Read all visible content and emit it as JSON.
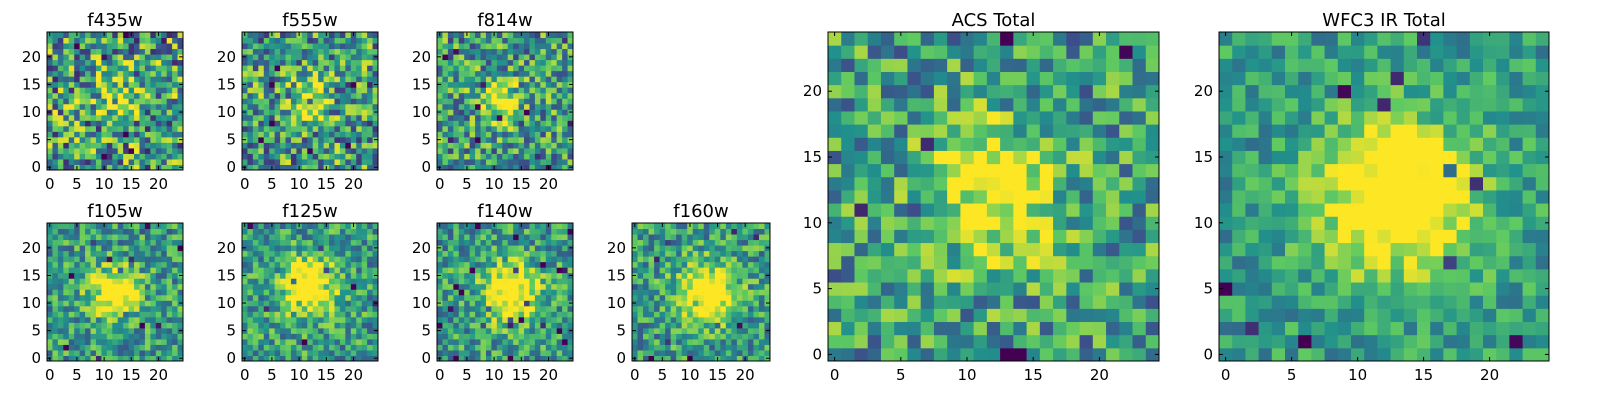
{
  "figure_title": "",
  "colormap": {
    "name": "viridis",
    "stops": [
      "#440154",
      "#3b528b",
      "#21918c",
      "#5ec962",
      "#fde725"
    ]
  },
  "chart_data": [
    {
      "type": "heatmap",
      "title": "f435w",
      "grid_size": [
        25,
        25
      ],
      "xlim": [
        -0.5,
        24.5
      ],
      "ylim": [
        -0.5,
        24.5
      ],
      "xticks": [
        0,
        5,
        10,
        15,
        20
      ],
      "yticks": [
        0,
        5,
        10,
        15,
        20
      ],
      "xlabel": "",
      "ylabel": "",
      "signal": {
        "center": [
          13,
          13
        ],
        "peak": 0.25,
        "sigma": 3
      },
      "noise": 0.55,
      "seed": 11
    },
    {
      "type": "heatmap",
      "title": "f555w",
      "grid_size": [
        25,
        25
      ],
      "xlim": [
        -0.5,
        24.5
      ],
      "ylim": [
        -0.5,
        24.5
      ],
      "xticks": [
        0,
        5,
        10,
        15,
        20
      ],
      "yticks": [
        0,
        5,
        10,
        15,
        20
      ],
      "xlabel": "",
      "ylabel": "",
      "signal": {
        "center": [
          11,
          12
        ],
        "peak": 0.35,
        "sigma": 3
      },
      "noise": 0.5,
      "seed": 23
    },
    {
      "type": "heatmap",
      "title": "f814w",
      "grid_size": [
        25,
        25
      ],
      "xlim": [
        -0.5,
        24.5
      ],
      "ylim": [
        -0.5,
        24.5
      ],
      "xticks": [
        0,
        5,
        10,
        15,
        20
      ],
      "yticks": [
        0,
        5,
        10,
        15,
        20
      ],
      "xlabel": "",
      "ylabel": "",
      "signal": {
        "center": [
          11,
          12
        ],
        "peak": 0.55,
        "sigma": 2.5
      },
      "noise": 0.45,
      "seed": 37
    },
    {
      "type": "heatmap",
      "title": "f105w",
      "grid_size": [
        25,
        25
      ],
      "xlim": [
        -0.5,
        24.5
      ],
      "ylim": [
        -0.5,
        24.5
      ],
      "xticks": [
        0,
        5,
        10,
        15,
        20
      ],
      "yticks": [
        0,
        5,
        10,
        15,
        20
      ],
      "xlabel": "",
      "ylabel": "",
      "signal": {
        "center": [
          12,
          12
        ],
        "peak": 0.7,
        "sigma": 3
      },
      "noise": 0.35,
      "seed": 41
    },
    {
      "type": "heatmap",
      "title": "f125w",
      "grid_size": [
        25,
        25
      ],
      "xlim": [
        -0.5,
        24.5
      ],
      "ylim": [
        -0.5,
        24.5
      ],
      "xticks": [
        0,
        5,
        10,
        15,
        20
      ],
      "yticks": [
        0,
        5,
        10,
        15,
        20
      ],
      "xlabel": "",
      "ylabel": "",
      "signal": {
        "center": [
          12,
          13
        ],
        "peak": 0.7,
        "sigma": 3.5
      },
      "noise": 0.35,
      "seed": 53
    },
    {
      "type": "heatmap",
      "title": "f140w",
      "grid_size": [
        25,
        25
      ],
      "xlim": [
        -0.5,
        24.5
      ],
      "ylim": [
        -0.5,
        24.5
      ],
      "xticks": [
        0,
        5,
        10,
        15,
        20
      ],
      "yticks": [
        0,
        5,
        10,
        15,
        20
      ],
      "xlabel": "",
      "ylabel": "",
      "signal": {
        "center": [
          13,
          12
        ],
        "peak": 0.7,
        "sigma": 3.5
      },
      "noise": 0.35,
      "seed": 67
    },
    {
      "type": "heatmap",
      "title": "f160w",
      "grid_size": [
        25,
        25
      ],
      "xlim": [
        -0.5,
        24.5
      ],
      "ylim": [
        -0.5,
        24.5
      ],
      "xticks": [
        0,
        5,
        10,
        15,
        20
      ],
      "yticks": [
        0,
        5,
        10,
        15,
        20
      ],
      "xlabel": "",
      "ylabel": "",
      "signal": {
        "center": [
          13,
          12
        ],
        "peak": 0.7,
        "sigma": 3.5
      },
      "noise": 0.35,
      "seed": 79
    },
    {
      "type": "heatmap",
      "title": "ACS Total",
      "grid_size": [
        25,
        25
      ],
      "xlim": [
        -0.5,
        24.5
      ],
      "ylim": [
        -0.5,
        24.5
      ],
      "xticks": [
        0,
        5,
        10,
        15,
        20
      ],
      "yticks": [
        0,
        5,
        10,
        15,
        20
      ],
      "xlabel": "",
      "ylabel": "",
      "signal": {
        "center": [
          12,
          12
        ],
        "peak": 0.55,
        "sigma": 3.5
      },
      "noise": 0.4,
      "seed": 97
    },
    {
      "type": "heatmap",
      "title": "WFC3 IR Total",
      "grid_size": [
        25,
        25
      ],
      "xlim": [
        -0.5,
        24.5
      ],
      "ylim": [
        -0.5,
        24.5
      ],
      "xticks": [
        0,
        5,
        10,
        15,
        20
      ],
      "yticks": [
        0,
        5,
        10,
        15,
        20
      ],
      "xlabel": "",
      "ylabel": "",
      "signal": {
        "center": [
          13,
          12
        ],
        "peak": 0.75,
        "sigma": 4
      },
      "noise": 0.25,
      "seed": 113
    }
  ]
}
